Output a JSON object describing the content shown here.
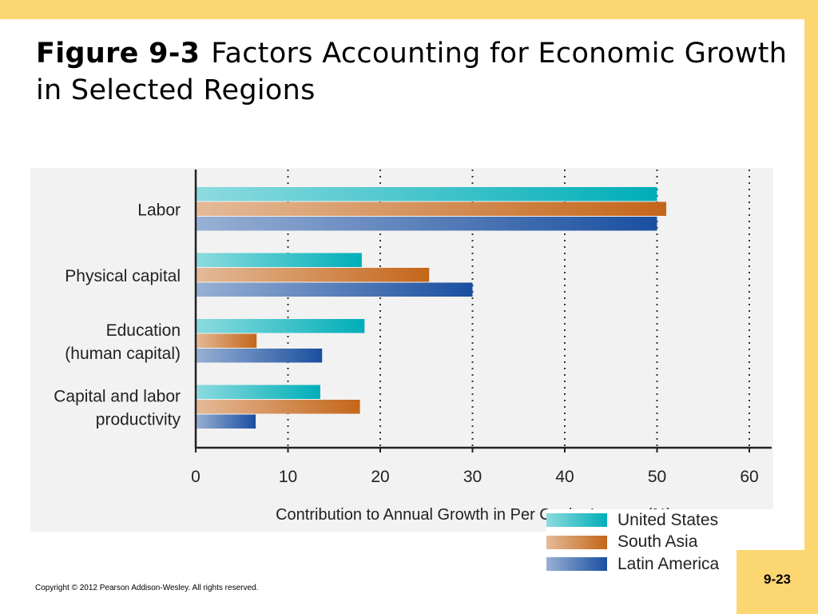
{
  "slide": {
    "figure_label": "Figure 9-3",
    "title": "Factors Accounting for Economic Growth in Selected Regions",
    "copyright": "Copyright © 2012 Pearson Addison-Wesley. All rights reserved.",
    "page_number": "9-23"
  },
  "colors": {
    "frame": "#fcd671",
    "chart_background": "#f2f2f2",
    "united_states": "#00aeb8",
    "south_asia": "#c4661a",
    "latin_america": "#1a4fa0"
  },
  "chart_data": {
    "type": "bar",
    "orientation": "horizontal",
    "categories": [
      [
        "Labor"
      ],
      [
        "Physical capital"
      ],
      [
        "Education",
        "(human capital)"
      ],
      [
        "Capital and labor",
        "productivity"
      ]
    ],
    "series": [
      {
        "name": "United States",
        "values": [
          50,
          18,
          18.3,
          13.5
        ]
      },
      {
        "name": "South Asia",
        "values": [
          51,
          25.3,
          6.6,
          17.8
        ]
      },
      {
        "name": "Latin America",
        "values": [
          50,
          30,
          13.7,
          6.5
        ]
      }
    ],
    "xlabel": "Contribution to Annual Growth in Per Capita Income (%)",
    "xlim": [
      0,
      60
    ],
    "xticks": [
      0,
      10,
      20,
      30,
      40,
      50,
      60
    ],
    "grid": "vertical dotted",
    "legend_position": "right"
  }
}
